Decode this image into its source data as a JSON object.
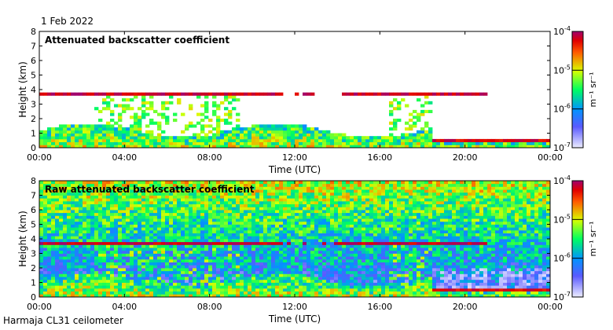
{
  "header": {
    "date": "1 Feb 2022"
  },
  "footer": {
    "station": "Harmaja CL31 ceilometer"
  },
  "chart_data": [
    {
      "type": "heatmap",
      "title": "Attenuated backscatter coefficient",
      "xlabel": "Time (UTC)",
      "ylabel": "Height (km)",
      "xticks": [
        "00:00",
        "04:00",
        "08:00",
        "12:00",
        "16:00",
        "20:00",
        "00:00"
      ],
      "xlim_hours": [
        0,
        24
      ],
      "ylim": [
        0,
        8
      ],
      "yticks": [
        0,
        1,
        2,
        3,
        4,
        5,
        6,
        7,
        8
      ],
      "colorbar": {
        "scale": "log",
        "range": [
          "1e-7",
          "1e-4"
        ],
        "tick_bases": [
          "10",
          "10",
          "10",
          "10"
        ],
        "tick_exponents": [
          "-7",
          "-6",
          "-5",
          "-4"
        ],
        "unit_label": "m⁻¹ sr⁻¹"
      },
      "features": {
        "cloud_layer_km": 3.7,
        "cloud_layer_hours": [
          0,
          21
        ],
        "low_cloud_km": 0.4,
        "low_cloud_hours": [
          18.5,
          24
        ]
      }
    },
    {
      "type": "heatmap",
      "title": "Raw attenuated backscatter coefficient",
      "xlabel": "Time (UTC)",
      "ylabel": "Height (km)",
      "xticks": [
        "00:00",
        "04:00",
        "08:00",
        "12:00",
        "16:00",
        "20:00",
        "00:00"
      ],
      "xlim_hours": [
        0,
        24
      ],
      "ylim": [
        0,
        8
      ],
      "yticks": [
        0,
        1,
        2,
        3,
        4,
        5,
        6,
        7,
        8
      ],
      "colorbar": {
        "scale": "log",
        "range": [
          "1e-7",
          "1e-4"
        ],
        "tick_bases": [
          "10",
          "10",
          "10",
          "10"
        ],
        "tick_exponents": [
          "-7",
          "-6",
          "-5",
          "-4"
        ],
        "unit_label": "m⁻¹ sr⁻¹"
      },
      "features": {
        "cloud_layer_km": 3.7,
        "cloud_layer_hours": [
          0,
          21
        ],
        "low_cloud_km": 0.4,
        "low_cloud_hours": [
          18.5,
          24
        ]
      }
    }
  ]
}
